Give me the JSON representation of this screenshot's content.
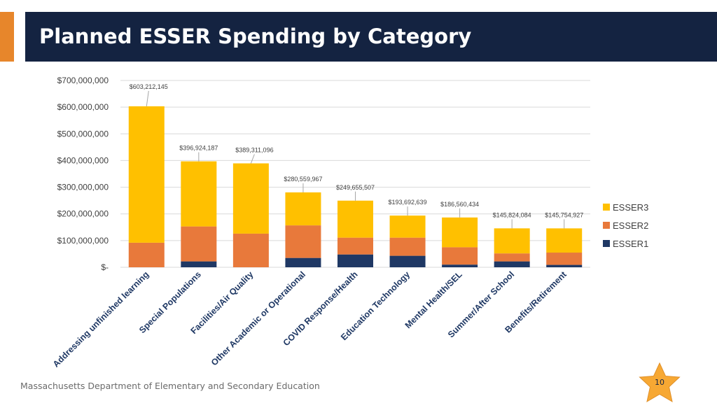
{
  "header": {
    "title": "Planned ESSER Spending by Category"
  },
  "footer": {
    "org": "Massachusetts Department of Elementary and Secondary Education",
    "page_number": "10"
  },
  "colors": {
    "esser1": "#1F3864",
    "esser2": "#E8793B",
    "esser3": "#FFC000",
    "title_bar": "#142341",
    "accent": "#E7862B"
  },
  "chart_data": {
    "type": "bar",
    "stacked": true,
    "title": "Planned ESSER Spending by Category",
    "xlabel": "",
    "ylabel": "",
    "ylim": [
      0,
      700000000
    ],
    "ytick_values": [
      0,
      100000000,
      200000000,
      300000000,
      400000000,
      500000000,
      600000000,
      700000000
    ],
    "ytick_labels": [
      "$-",
      "$100,000,000",
      "$200,000,000",
      "$300,000,000",
      "$400,000,000",
      "$500,000,000",
      "$600,000,000",
      "$700,000,000"
    ],
    "categories": [
      "Addressing unfinished learning",
      "Special Populations",
      "Facilities/Air Quality",
      "Other Academic or Operational",
      "COVID Response/Health",
      "Education Technology",
      "Mental Health/SEL",
      "Summer/After School",
      "Benefits/Retirement"
    ],
    "series": [
      {
        "name": "ESSER1",
        "values": [
          0,
          22000000,
          0,
          35000000,
          48000000,
          43000000,
          10000000,
          22000000,
          9000000
        ]
      },
      {
        "name": "ESSER2",
        "values": [
          92000000,
          131000000,
          126000000,
          122000000,
          63000000,
          68000000,
          65000000,
          30000000,
          46000000
        ]
      },
      {
        "name": "ESSER3",
        "values": [
          511212145,
          243924187,
          263311096,
          123559967,
          138655507,
          82692639,
          111560434,
          93824084,
          90754927
        ]
      }
    ],
    "totals": [
      603212145,
      396924187,
      389311096,
      280559967,
      249655507,
      193692639,
      186560434,
      145824084,
      145754927
    ],
    "total_labels": [
      "$603,212,145",
      "$396,924,187",
      "$389,311,096",
      "$280,559,967",
      "$249,655,507",
      "$193,692,639",
      "$186,560,434",
      "$145,824,084",
      "$145,754,927"
    ],
    "legend": [
      "ESSER3",
      "ESSER2",
      "ESSER1"
    ],
    "legend_position": "right",
    "grid": true
  }
}
